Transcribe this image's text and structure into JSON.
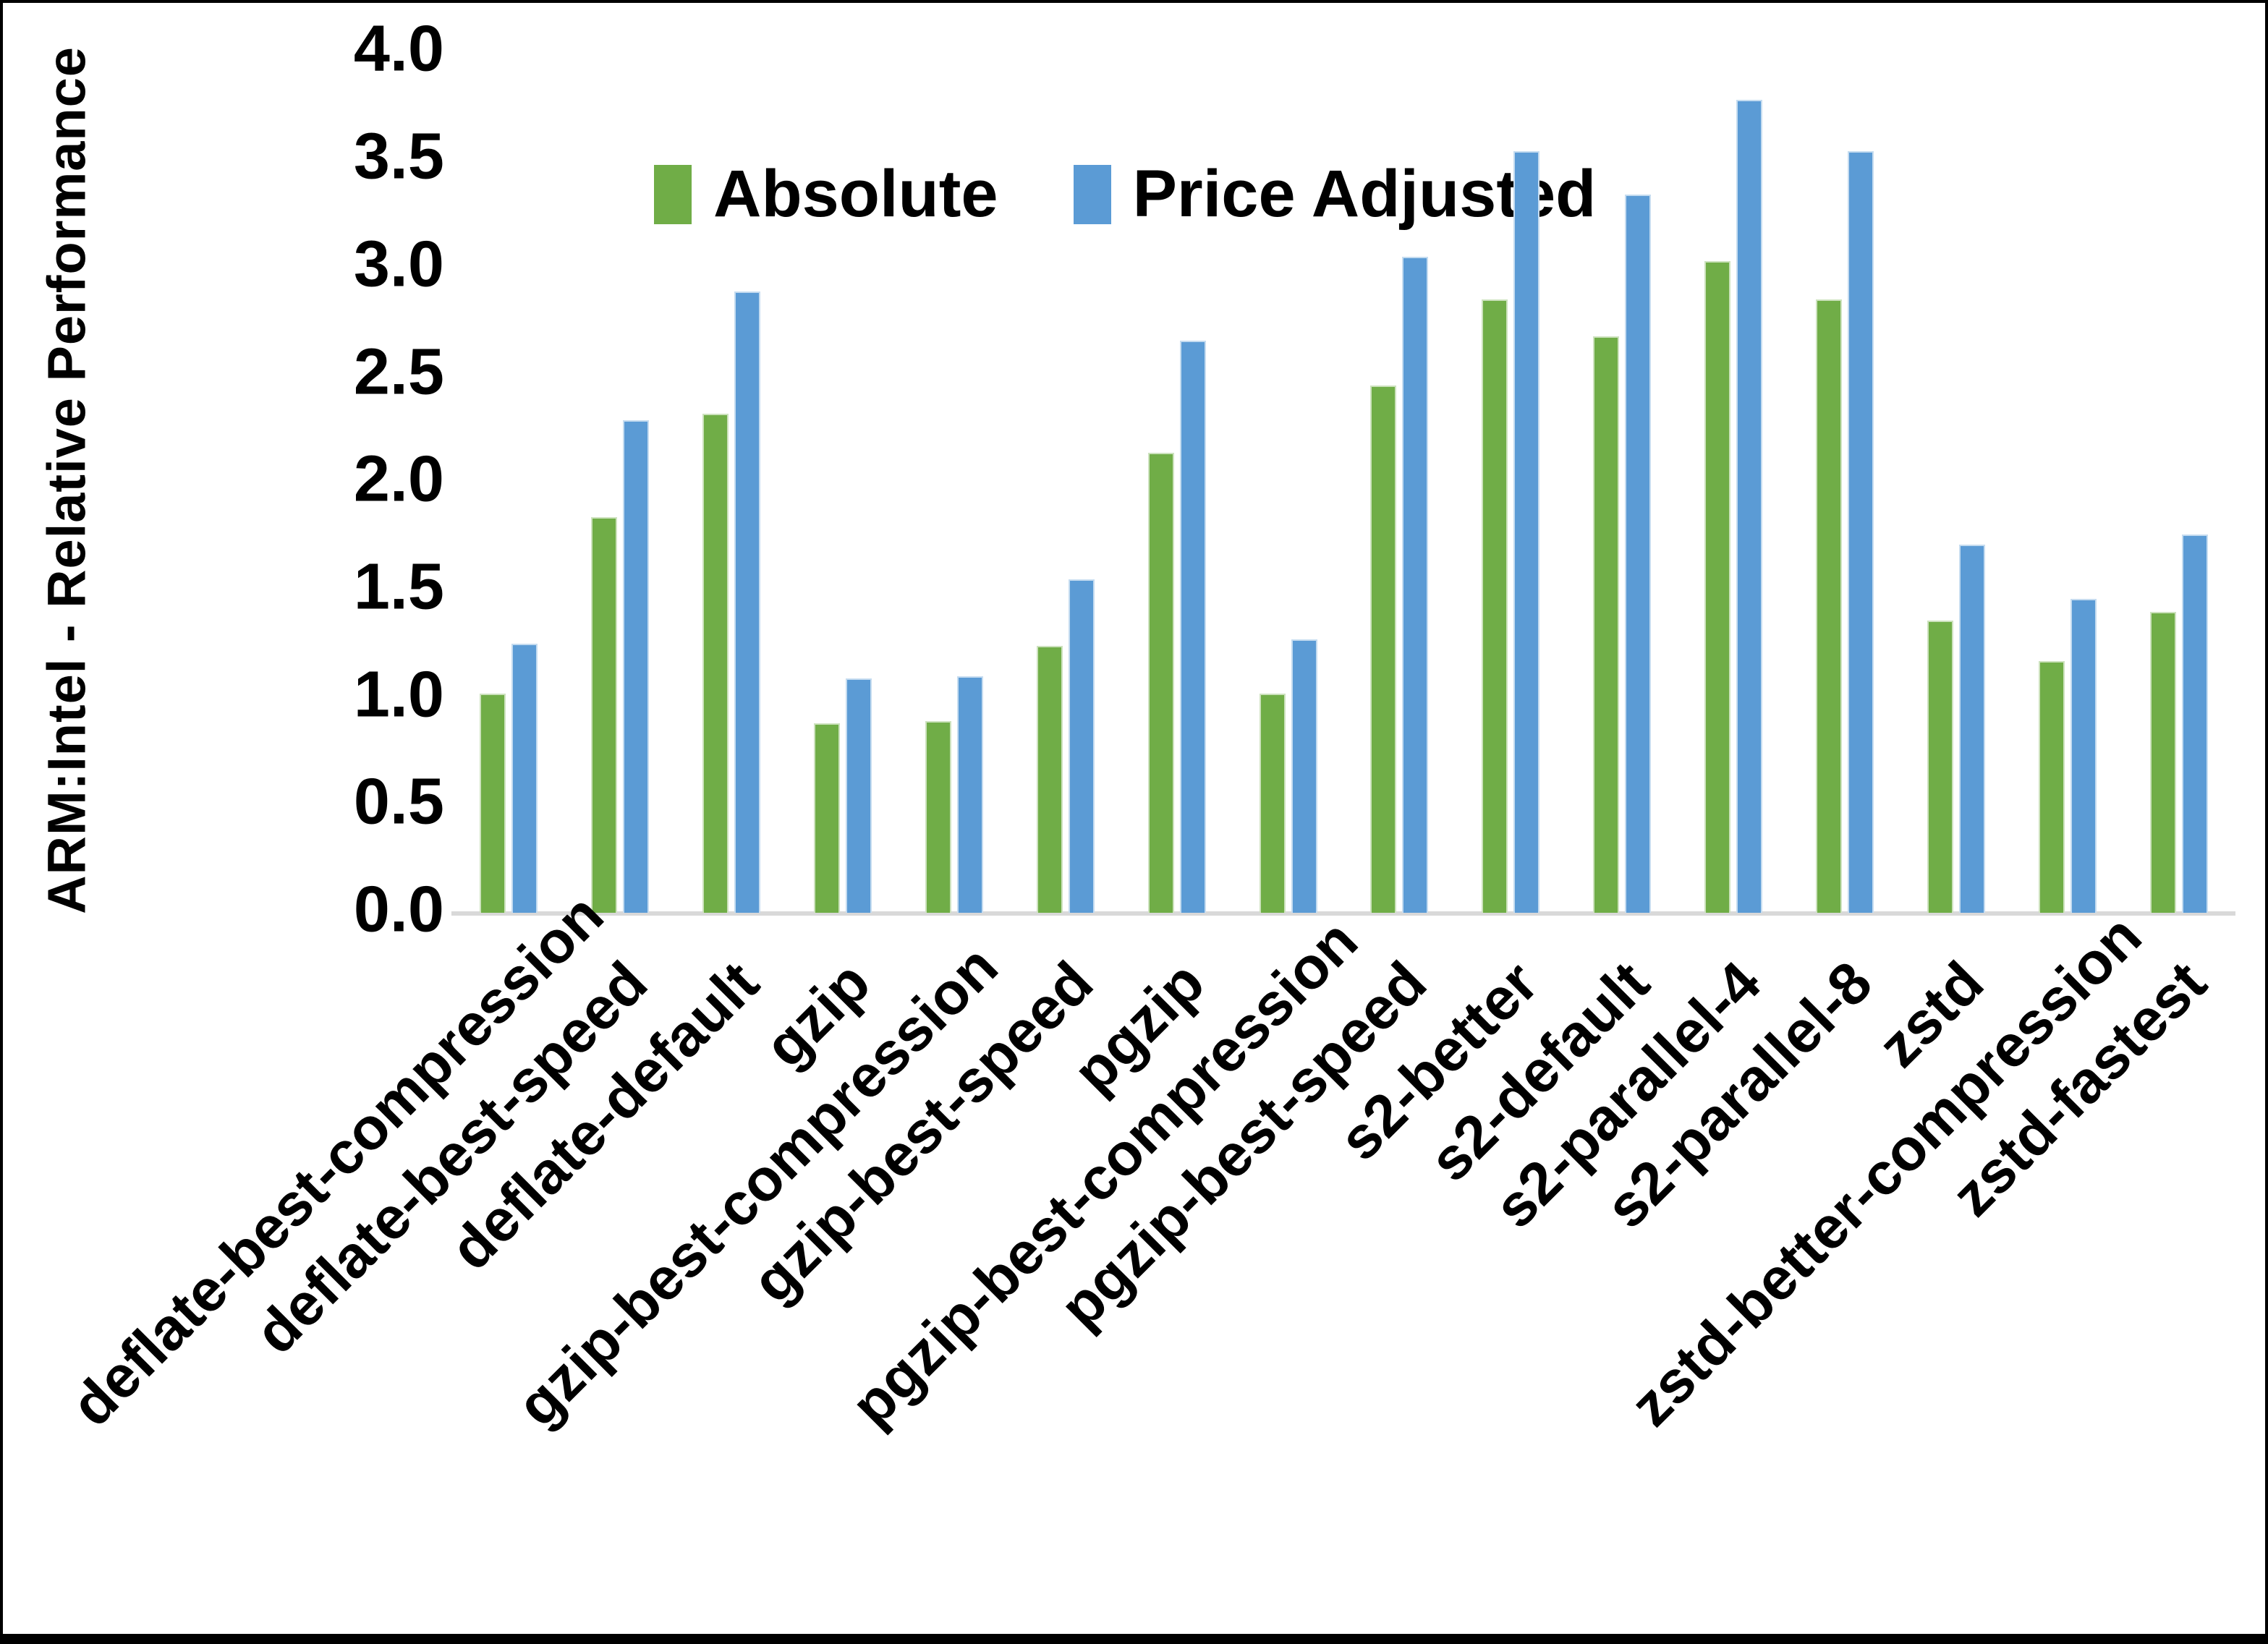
{
  "chart_data": {
    "type": "bar",
    "title": "",
    "xlabel": "",
    "ylabel": "ARM:Intel - Relative Performance",
    "ylim": [
      0.0,
      4.0
    ],
    "ytick_labels": [
      "0.0",
      "0.5",
      "1.0",
      "1.5",
      "2.0",
      "2.5",
      "3.0",
      "3.5",
      "4.0"
    ],
    "grid": false,
    "legend_position": "top-center",
    "categories": [
      "deflate-best-compression",
      "deflate-best-speed",
      "deflate-default",
      "gzip",
      "gzip-best-compression",
      "gzip-best-speed",
      "pgzip",
      "pgzip-best-compression",
      "pgzip-best-speed",
      "s2-better",
      "s2-default",
      "s2-parallel-4",
      "s2-parallel-8",
      "zstd",
      "zstd-better-compression",
      "zstd-fastest"
    ],
    "series": [
      {
        "name": "Absolute",
        "color": "#70AD47",
        "values": [
          1.02,
          1.84,
          2.32,
          0.88,
          0.89,
          1.24,
          2.14,
          1.02,
          2.45,
          2.85,
          2.68,
          3.03,
          2.85,
          1.36,
          1.17,
          1.4
        ]
      },
      {
        "name": "Price Adjusted",
        "color": "#5B9BD5",
        "values": [
          1.25,
          2.29,
          2.89,
          1.09,
          1.1,
          1.55,
          2.66,
          1.27,
          3.05,
          3.54,
          3.34,
          3.78,
          3.54,
          1.71,
          1.46,
          1.76
        ]
      }
    ]
  },
  "colors": {
    "axis_line": "#D9D9D9",
    "text": "#000000",
    "background": "#FFFFFF"
  }
}
